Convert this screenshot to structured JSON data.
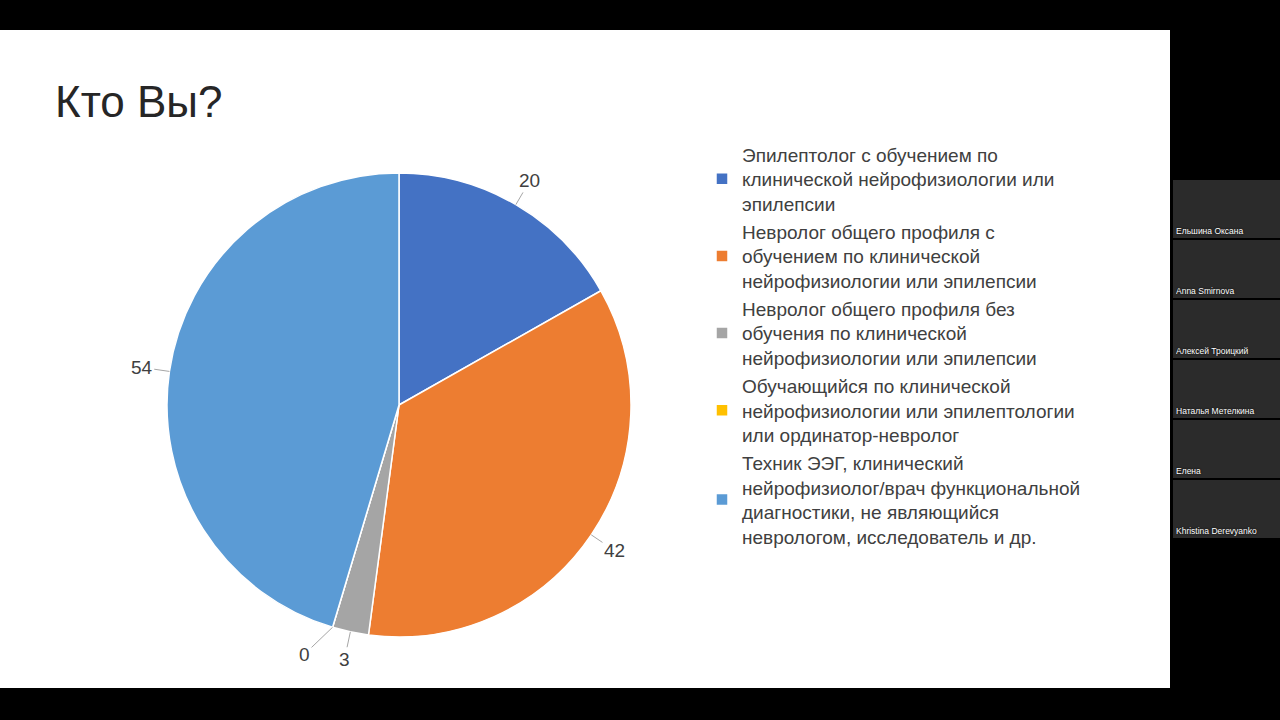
{
  "chart_data": {
    "type": "pie",
    "title": "Кто Вы?",
    "categories": [
      "Эпилептолог с обучением по клинической нейрофизиологии или эпилепсии",
      "Невролог общего профиля с обучением по клинической нейрофизиологии или эпилепсии",
      "Невролог общего профиля без обучения по клинической нейрофизиологии или эпилепсии",
      "Обучающийся по клинической нейрофизиологии или эпилептологии или ординатор-невролог",
      "Техник ЭЭГ, клинический нейрофизиолог/врач функциональной диагностики, не являющийся неврологом, исследователь и др."
    ],
    "values": [
      20,
      42,
      3,
      0,
      54
    ],
    "colors": [
      "#4472c4",
      "#ed7d31",
      "#a5a5a5",
      "#ffc000",
      "#5b9bd5"
    ],
    "data_labels": true,
    "legend": "right"
  },
  "participants": [
    "Ельшина Оксана",
    "Anna Smirnova",
    "Алексей Троицкий",
    "Наталья Метелкина",
    "Елена",
    "Khristina Derevyanko"
  ]
}
